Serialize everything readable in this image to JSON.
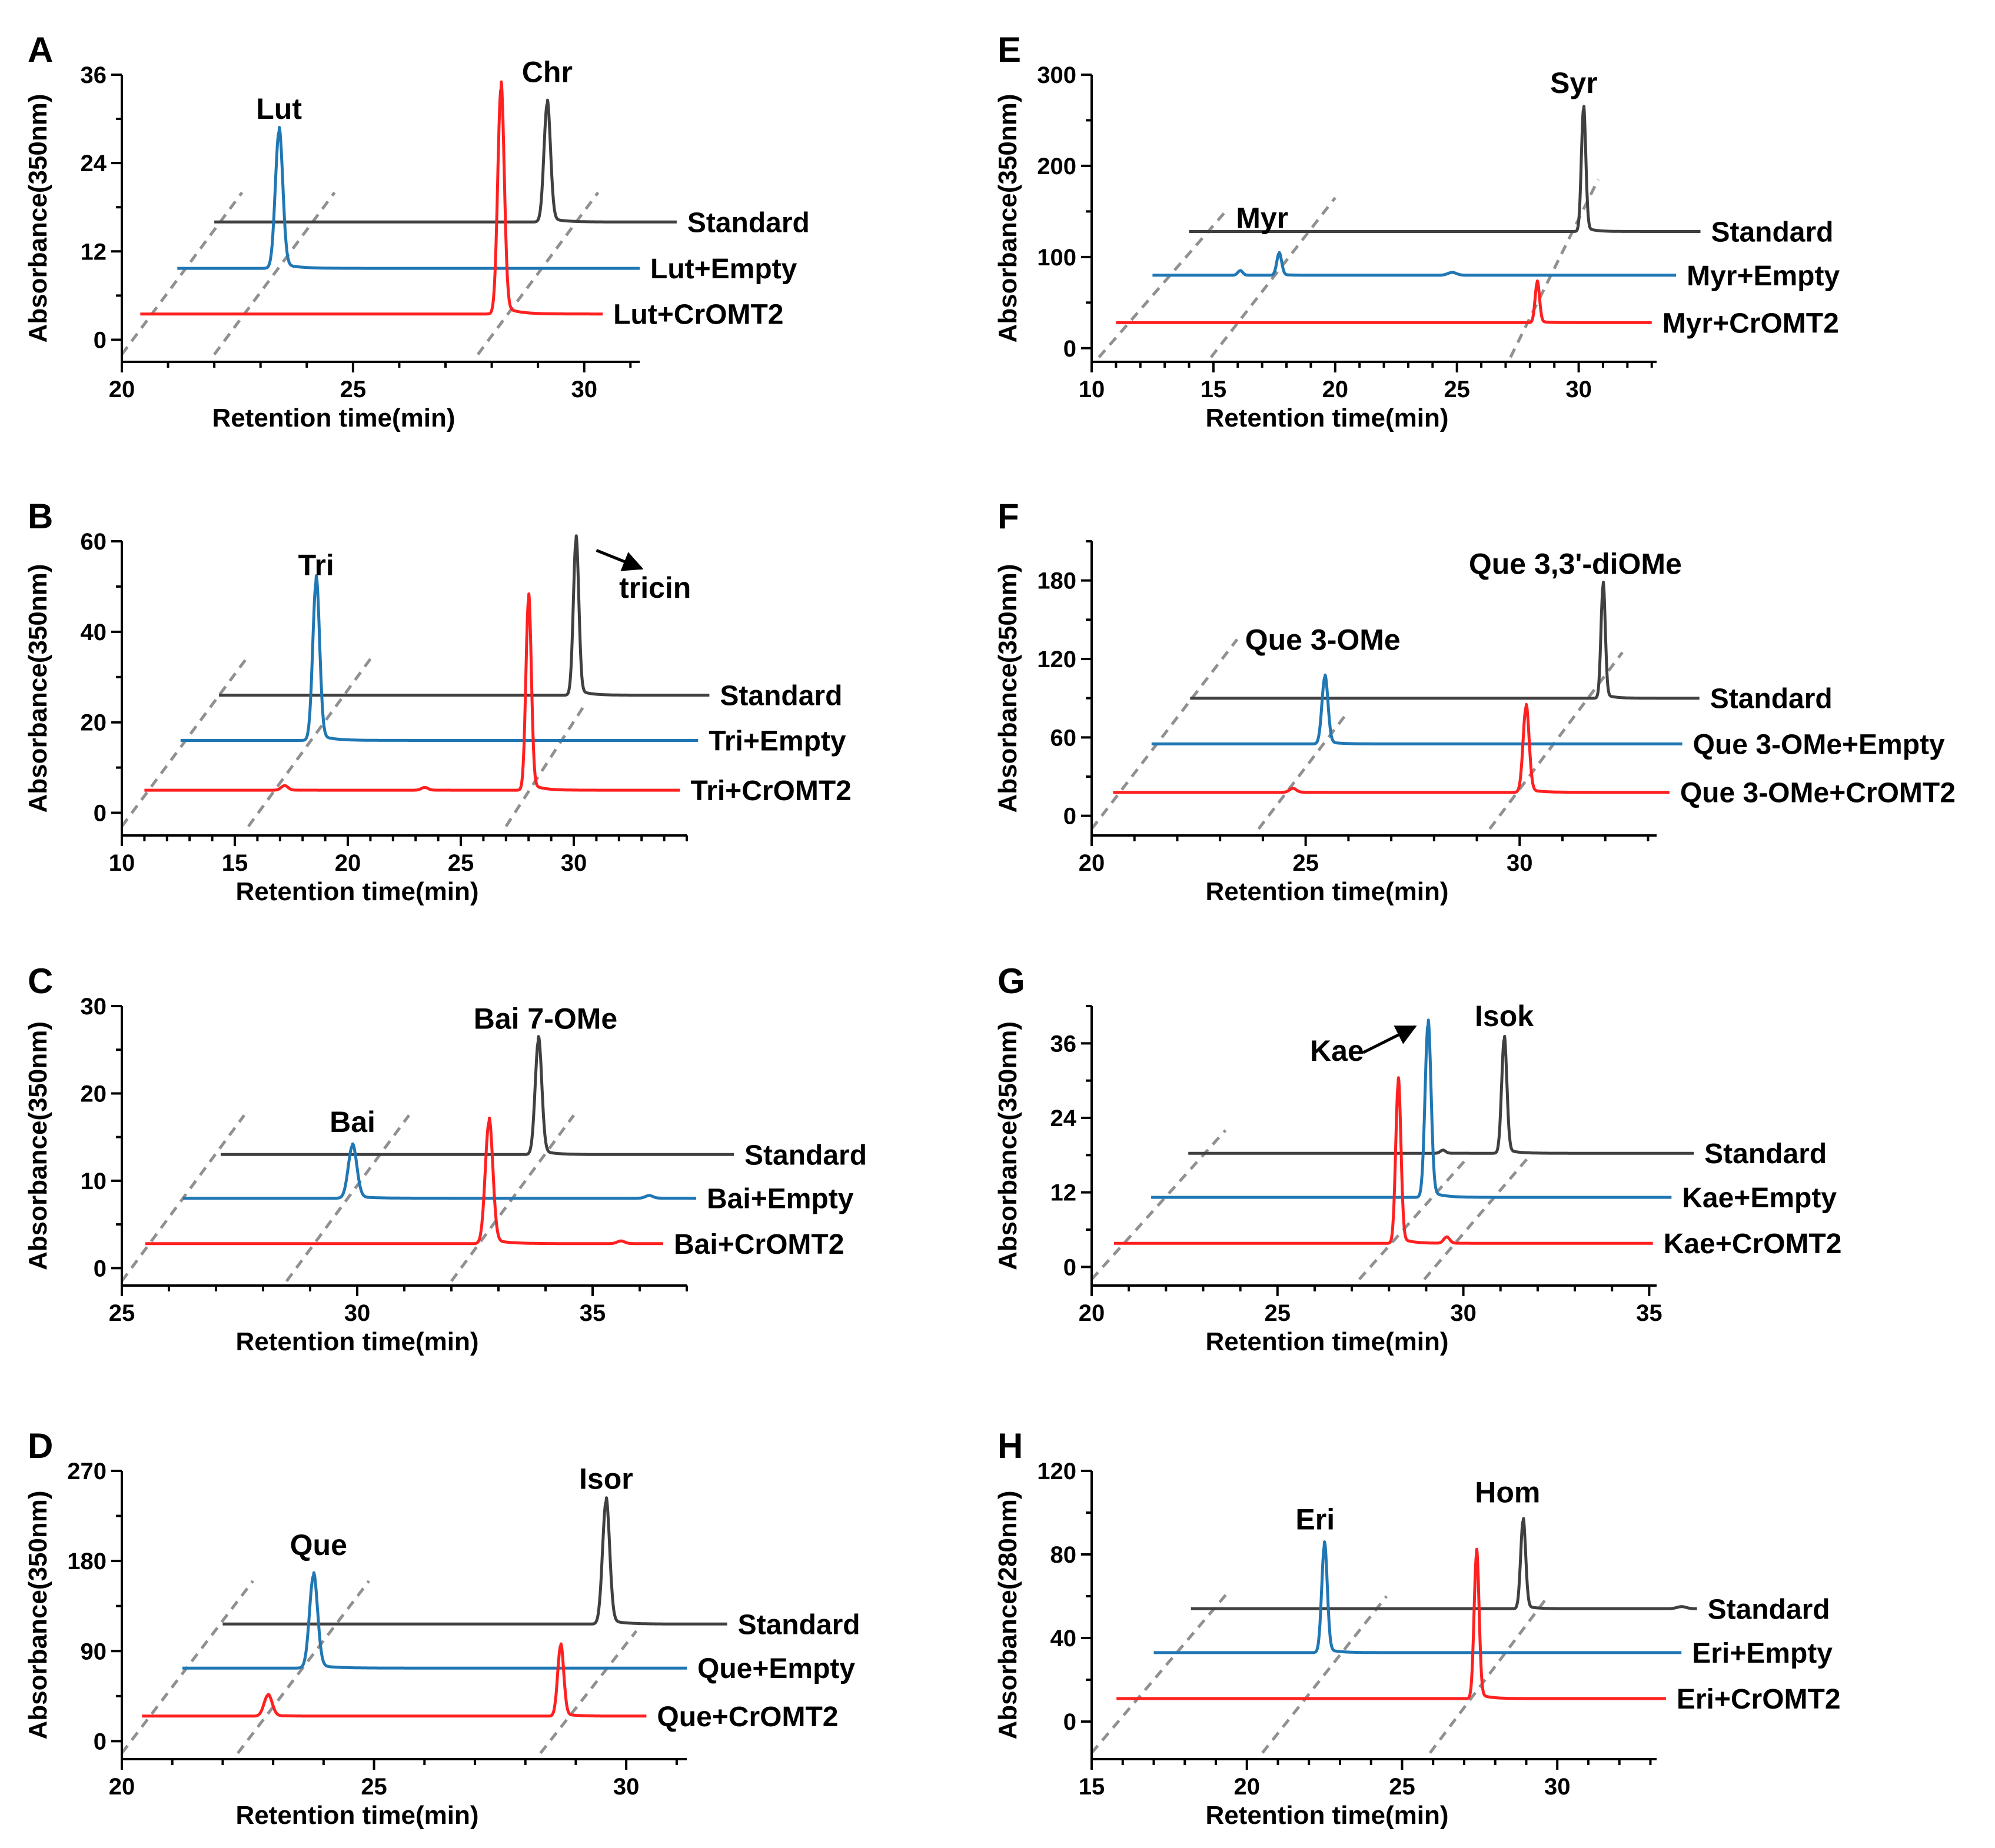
{
  "figure": {
    "colors": {
      "standard": "#404040",
      "empty": "#1f77b4",
      "cromt2": "#ff2020",
      "guide": "#909090",
      "axis": "#000000"
    },
    "panels": [
      {
        "letter": "A",
        "xlabel": "Retention time(min)",
        "ylabel": "Absorbance(350nm)",
        "xlim": [
          20,
          31.2
        ],
        "ylim": [
          -3,
          36
        ],
        "xticks": [
          20,
          25,
          30
        ],
        "yticks": [
          0,
          12,
          24,
          36
        ],
        "x_minor": 1,
        "y_minor": 6,
        "traces": [
          {
            "name": "Standard",
            "role": "standard",
            "x_start": 22.0,
            "x_end": 32.0,
            "baseline": 16.0,
            "peaks": [
              {
                "x": 29.2,
                "height": 16.0,
                "width": 0.07
              }
            ]
          },
          {
            "name": "Lut+Empty",
            "role": "empty",
            "x_start": 21.2,
            "x_end": 31.2,
            "baseline": 9.7,
            "peaks": [
              {
                "x": 23.4,
                "height": 18.5,
                "width": 0.08
              }
            ]
          },
          {
            "name": "Lut+CrOMT2",
            "role": "cromt2",
            "x_start": 20.4,
            "x_end": 30.4,
            "baseline": 3.5,
            "peaks": [
              {
                "x": 28.2,
                "height": 30.5,
                "width": 0.07
              }
            ]
          }
        ],
        "guides": [
          {
            "x1": 20.0,
            "y1": -2.0,
            "x2": 22.6,
            "y2": 20.0
          },
          {
            "x1": 22.0,
            "y1": -2.0,
            "x2": 24.6,
            "y2": 20.0
          },
          {
            "x1": 27.7,
            "y1": -2.0,
            "x2": 30.3,
            "y2": 20.0
          }
        ],
        "peak_labels": [
          {
            "text": "Lut",
            "x": 23.4,
            "y": 30.0
          },
          {
            "text": "Chr",
            "x": 29.2,
            "y": 35.0
          }
        ],
        "arrows": []
      },
      {
        "letter": "B",
        "xlabel": "Retention time(min)",
        "ylabel": "Absorbance(350nm)",
        "xlim": [
          10,
          35
        ],
        "ylim": [
          -5,
          60
        ],
        "xticks": [
          10,
          15,
          20,
          25,
          30
        ],
        "yticks": [
          0,
          20,
          40,
          60
        ],
        "x_minor": 1,
        "y_minor": 10,
        "traces": [
          {
            "name": "Standard",
            "role": "standard",
            "x_start": 14.3,
            "x_end": 36.0,
            "baseline": 26.0,
            "peaks": [
              {
                "x": 30.1,
                "height": 34.0,
                "width": 0.12
              }
            ]
          },
          {
            "name": "Tri+Empty",
            "role": "empty",
            "x_start": 12.6,
            "x_end": 35.5,
            "baseline": 16.0,
            "peaks": [
              {
                "x": 18.6,
                "height": 35.0,
                "width": 0.15
              }
            ]
          },
          {
            "name": "Tri+CrOMT2",
            "role": "cromt2",
            "x_start": 11.0,
            "x_end": 34.7,
            "baseline": 5.0,
            "peaks": [
              {
                "x": 28.0,
                "height": 42.0,
                "width": 0.12
              },
              {
                "x": 17.2,
                "height": 1.0,
                "width": 0.15
              },
              {
                "x": 23.4,
                "height": 0.6,
                "width": 0.15
              }
            ]
          }
        ],
        "guides": [
          {
            "x1": 10.0,
            "y1": -3.0,
            "x2": 15.5,
            "y2": 34.0
          },
          {
            "x1": 15.6,
            "y1": -3.0,
            "x2": 21.0,
            "y2": 34.0
          },
          {
            "x1": 27.0,
            "y1": -3.0,
            "x2": 30.5,
            "y2": 24.0
          }
        ],
        "peak_labels": [
          {
            "text": "Tri",
            "x": 18.6,
            "y": 52.5
          },
          {
            "text": "tricin",
            "x": 33.6,
            "y": 47.5
          }
        ],
        "arrows": [
          {
            "x1": 31.0,
            "y1": 58.0,
            "x2": 33.0,
            "y2": 54.0
          }
        ]
      },
      {
        "letter": "C",
        "xlabel": "Retention time(min)",
        "ylabel": "Absorbance(350nm)",
        "xlim": [
          25,
          37
        ],
        "ylim": [
          -2,
          30
        ],
        "xticks": [
          25,
          30,
          35
        ],
        "yticks": [
          0,
          10,
          20,
          30
        ],
        "x_minor": 1,
        "y_minor": 5,
        "traces": [
          {
            "name": "Standard",
            "role": "standard",
            "x_start": 27.1,
            "x_end": 38.0,
            "baseline": 13.0,
            "peaks": [
              {
                "x": 33.85,
                "height": 13.0,
                "width": 0.07
              }
            ]
          },
          {
            "name": "Bai+Empty",
            "role": "empty",
            "x_start": 26.3,
            "x_end": 37.2,
            "baseline": 8.0,
            "peaks": [
              {
                "x": 29.9,
                "height": 6.0,
                "width": 0.09
              },
              {
                "x": 36.2,
                "height": 0.3,
                "width": 0.08
              }
            ]
          },
          {
            "name": "Bai+CrOMT2",
            "role": "cromt2",
            "x_start": 25.5,
            "x_end": 36.5,
            "baseline": 2.8,
            "peaks": [
              {
                "x": 32.8,
                "height": 13.9,
                "width": 0.08
              },
              {
                "x": 35.6,
                "height": 0.3,
                "width": 0.08
              }
            ]
          }
        ],
        "guides": [
          {
            "x1": 25.0,
            "y1": -1.5,
            "x2": 27.6,
            "y2": 17.5
          },
          {
            "x1": 28.5,
            "y1": -1.5,
            "x2": 31.1,
            "y2": 17.5
          },
          {
            "x1": 32.0,
            "y1": -1.5,
            "x2": 34.6,
            "y2": 17.5
          }
        ],
        "peak_labels": [
          {
            "text": "Bai 7-OMe",
            "x": 34.0,
            "y": 27.4
          },
          {
            "text": "Bai",
            "x": 29.9,
            "y": 15.6
          }
        ],
        "arrows": []
      },
      {
        "letter": "D",
        "xlabel": "Retention time(min)",
        "ylabel": "Absorbance(350nm)",
        "xlim": [
          20,
          31.2
        ],
        "ylim": [
          -18,
          270
        ],
        "xticks": [
          20,
          25,
          30
        ],
        "yticks": [
          0,
          90,
          180,
          270
        ],
        "x_minor": 1,
        "y_minor": 45,
        "traces": [
          {
            "name": "Standard",
            "role": "standard",
            "x_start": 22.0,
            "x_end": 32.0,
            "baseline": 117.0,
            "peaks": [
              {
                "x": 29.6,
                "height": 122.0,
                "width": 0.07
              }
            ]
          },
          {
            "name": "Que+Empty",
            "role": "empty",
            "x_start": 21.2,
            "x_end": 31.2,
            "baseline": 73.0,
            "peaks": [
              {
                "x": 23.8,
                "height": 92.0,
                "width": 0.08
              }
            ]
          },
          {
            "name": "Que+CrOMT2",
            "role": "cromt2",
            "x_start": 20.4,
            "x_end": 30.4,
            "baseline": 25.0,
            "peaks": [
              {
                "x": 28.7,
                "height": 70.0,
                "width": 0.06
              },
              {
                "x": 22.9,
                "height": 21.0,
                "width": 0.08
              }
            ]
          }
        ],
        "guides": [
          {
            "x1": 20.0,
            "y1": -12.0,
            "x2": 22.6,
            "y2": 160.0
          },
          {
            "x1": 22.3,
            "y1": -12.0,
            "x2": 24.9,
            "y2": 160.0
          },
          {
            "x1": 28.3,
            "y1": -12.0,
            "x2": 30.2,
            "y2": 110.0
          }
        ],
        "peak_labels": [
          {
            "text": "Que",
            "x": 23.9,
            "y": 186.0
          },
          {
            "text": "Isor",
            "x": 29.6,
            "y": 252.0
          }
        ],
        "arrows": []
      },
      {
        "letter": "E",
        "xlabel": "Retention time(min)",
        "ylabel": "Absorbance(350nm)",
        "xlim": [
          10,
          33.2
        ],
        "ylim": [
          -15,
          300
        ],
        "xticks": [
          10,
          15,
          20,
          25,
          30
        ],
        "yticks": [
          0,
          100,
          200,
          300
        ],
        "x_minor": 1,
        "y_minor": 50,
        "traces": [
          {
            "name": "Standard",
            "role": "standard",
            "x_start": 14.0,
            "x_end": 35.0,
            "baseline": 128.0,
            "peaks": [
              {
                "x": 30.2,
                "height": 134.0,
                "width": 0.09
              }
            ]
          },
          {
            "name": "Myr+Empty",
            "role": "empty",
            "x_start": 12.5,
            "x_end": 34.0,
            "baseline": 80.0,
            "peaks": [
              {
                "x": 17.7,
                "height": 24.0,
                "width": 0.1
              },
              {
                "x": 16.1,
                "height": 5.0,
                "width": 0.1
              },
              {
                "x": 24.8,
                "height": 3.0,
                "width": 0.18
              }
            ]
          },
          {
            "name": "Myr+CrOMT2",
            "role": "cromt2",
            "x_start": 11.0,
            "x_end": 33.0,
            "baseline": 28.0,
            "peaks": [
              {
                "x": 28.3,
                "height": 44.0,
                "width": 0.09
              }
            ]
          }
        ],
        "guides": [
          {
            "x1": 10.3,
            "y1": -10.0,
            "x2": 15.5,
            "y2": 150.0
          },
          {
            "x1": 14.9,
            "y1": -10.0,
            "x2": 20.0,
            "y2": 165.0
          },
          {
            "x1": 27.2,
            "y1": -10.0,
            "x2": 30.8,
            "y2": 185.0
          }
        ],
        "peak_labels": [
          {
            "text": "Myr",
            "x": 17.0,
            "y": 132.0
          },
          {
            "text": "Syr",
            "x": 29.8,
            "y": 280.0
          }
        ],
        "arrows": []
      },
      {
        "letter": "F",
        "xlabel": "Retention time(min)",
        "ylabel": "Absorbance(350nm)",
        "xlim": [
          20,
          33.2
        ],
        "ylim": [
          -15,
          210
        ],
        "xticks": [
          20,
          25,
          30
        ],
        "yticks": [
          0,
          60,
          120,
          180
        ],
        "x_minor": 1,
        "y_minor": 30,
        "traces": [
          {
            "name": "Standard",
            "role": "standard",
            "x_start": 22.3,
            "x_end": 34.2,
            "baseline": 90.0,
            "peaks": [
              {
                "x": 31.95,
                "height": 86.0,
                "width": 0.05
              }
            ]
          },
          {
            "name": "Que 3-OMe+Empty",
            "role": "empty",
            "x_start": 21.4,
            "x_end": 33.8,
            "baseline": 55.0,
            "peaks": [
              {
                "x": 25.45,
                "height": 51.0,
                "width": 0.07
              }
            ]
          },
          {
            "name": "Que 3-OMe+CrOMT2",
            "role": "cromt2",
            "x_start": 20.5,
            "x_end": 33.5,
            "baseline": 18.0,
            "peaks": [
              {
                "x": 30.15,
                "height": 65.0,
                "width": 0.07
              },
              {
                "x": 24.7,
                "height": 3.0,
                "width": 0.08
              }
            ]
          }
        ],
        "guides": [
          {
            "x1": 20.0,
            "y1": -10.0,
            "x2": 23.4,
            "y2": 135.0
          },
          {
            "x1": 23.9,
            "y1": -10.0,
            "x2": 26.0,
            "y2": 80.0
          },
          {
            "x1": 29.3,
            "y1": -10.0,
            "x2": 32.4,
            "y2": 125.0
          }
        ],
        "peak_labels": [
          {
            "text": "Que 3-OMe",
            "x": 25.4,
            "y": 127.0
          },
          {
            "text": "Que 3,3'-diOMe",
            "x": 31.3,
            "y": 185.0
          }
        ],
        "arrows": []
      },
      {
        "letter": "G",
        "xlabel": "Retention time(min)",
        "ylabel": "Absorbance(350nm)",
        "xlim": [
          20,
          35.2
        ],
        "ylim": [
          -3,
          42
        ],
        "xticks": [
          20,
          25,
          30,
          35
        ],
        "yticks": [
          0,
          12,
          24,
          36
        ],
        "x_minor": 1,
        "y_minor": 6,
        "traces": [
          {
            "name": "Standard",
            "role": "standard",
            "x_start": 22.6,
            "x_end": 36.2,
            "baseline": 18.3,
            "peaks": [
              {
                "x": 31.1,
                "height": 18.3,
                "width": 0.07
              },
              {
                "x": 29.45,
                "height": 0.5,
                "width": 0.07
              }
            ]
          },
          {
            "name": "Kae+Empty",
            "role": "empty",
            "x_start": 21.6,
            "x_end": 35.6,
            "baseline": 11.2,
            "peaks": [
              {
                "x": 29.05,
                "height": 27.7,
                "width": 0.08
              }
            ]
          },
          {
            "name": "Kae+CrOMT2",
            "role": "cromt2",
            "x_start": 20.6,
            "x_end": 35.1,
            "baseline": 3.8,
            "peaks": [
              {
                "x": 28.25,
                "height": 25.7,
                "width": 0.07
              },
              {
                "x": 29.55,
                "height": 1.0,
                "width": 0.08
              }
            ]
          }
        ],
        "guides": [
          {
            "x1": 20.0,
            "y1": -2.0,
            "x2": 23.6,
            "y2": 22.0
          },
          {
            "x1": 27.2,
            "y1": -2.0,
            "x2": 30.1,
            "y2": 17.5
          },
          {
            "x1": 28.95,
            "y1": -2.0,
            "x2": 31.8,
            "y2": 18.0
          }
        ],
        "peak_labels": [
          {
            "text": "Isok",
            "x": 31.1,
            "y": 38.8
          },
          {
            "text": "Kae",
            "x": 26.6,
            "y": 33.2
          }
        ],
        "arrows": [
          {
            "x1": 27.3,
            "y1": 34.5,
            "x2": 28.7,
            "y2": 38.7
          }
        ]
      },
      {
        "letter": "H",
        "xlabel": "Retention time(min)",
        "ylabel": "Absorbance(280nm)",
        "xlim": [
          15,
          33.2
        ],
        "ylim": [
          -18,
          120
        ],
        "xticks": [
          15,
          20,
          25,
          30
        ],
        "yticks": [
          0,
          40,
          80,
          120
        ],
        "x_minor": 1,
        "y_minor": 20,
        "traces": [
          {
            "name": "Standard",
            "role": "standard",
            "x_start": 18.2,
            "x_end": 34.5,
            "baseline": 54.0,
            "peaks": [
              {
                "x": 28.9,
                "height": 42.0,
                "width": 0.08
              },
              {
                "x": 34.0,
                "height": 1.0,
                "width": 0.15
              }
            ]
          },
          {
            "name": "Eri+Empty",
            "role": "empty",
            "x_start": 17.0,
            "x_end": 34.0,
            "baseline": 33.0,
            "peaks": [
              {
                "x": 22.5,
                "height": 51.0,
                "width": 0.09
              }
            ]
          },
          {
            "name": "Eri+CrOMT2",
            "role": "cromt2",
            "x_start": 15.8,
            "x_end": 33.5,
            "baseline": 11.0,
            "peaks": [
              {
                "x": 27.4,
                "height": 69.0,
                "width": 0.08
              }
            ]
          }
        ],
        "guides": [
          {
            "x1": 15.0,
            "y1": -15.0,
            "x2": 19.4,
            "y2": 62.0
          },
          {
            "x1": 20.5,
            "y1": -15.0,
            "x2": 24.5,
            "y2": 60.0
          },
          {
            "x1": 25.9,
            "y1": -15.0,
            "x2": 29.6,
            "y2": 58.0
          }
        ],
        "peak_labels": [
          {
            "text": "Eri",
            "x": 22.2,
            "y": 92.0
          },
          {
            "text": "Hom",
            "x": 28.4,
            "y": 105.0
          }
        ],
        "arrows": []
      }
    ]
  }
}
